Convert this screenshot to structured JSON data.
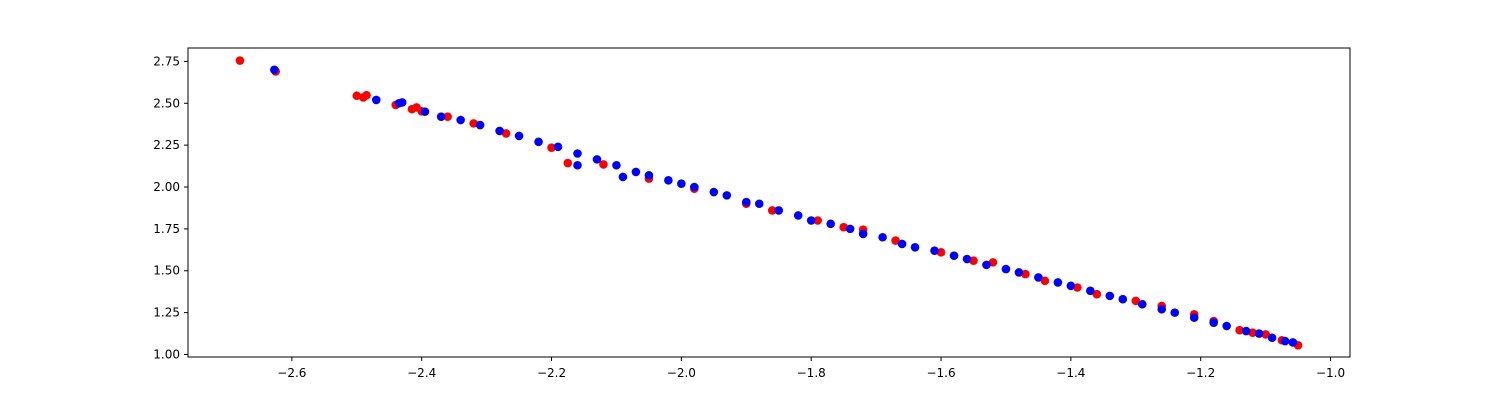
{
  "chart_data": {
    "type": "scatter",
    "title": "",
    "xlabel": "",
    "ylabel": "",
    "xlim": [
      -2.76,
      -0.97
    ],
    "ylim": [
      0.985,
      2.83
    ],
    "xticks": [
      -2.6,
      -2.4,
      -2.2,
      -2.0,
      -1.8,
      -1.6,
      -1.4,
      -1.2,
      -1.0
    ],
    "xtick_labels": [
      "−2.6",
      "−2.4",
      "−2.2",
      "−2.0",
      "−1.8",
      "−1.6",
      "−1.4",
      "−1.2",
      "−1.0"
    ],
    "yticks": [
      1.0,
      1.25,
      1.5,
      1.75,
      2.0,
      2.25,
      2.5,
      2.75
    ],
    "ytick_labels": [
      "1.00",
      "1.25",
      "1.50",
      "1.75",
      "2.00",
      "2.25",
      "2.50",
      "2.75"
    ],
    "grid": false,
    "legend": "none",
    "series": [
      {
        "color": "#ff0000",
        "points": [
          [
            -2.68,
            2.755
          ],
          [
            -2.625,
            2.69
          ],
          [
            -2.5,
            2.545
          ],
          [
            -2.49,
            2.535
          ],
          [
            -2.485,
            2.548
          ],
          [
            -2.44,
            2.49
          ],
          [
            -2.415,
            2.465
          ],
          [
            -2.408,
            2.475
          ],
          [
            -2.4,
            2.452
          ],
          [
            -2.175,
            2.143
          ],
          [
            -2.36,
            2.42
          ],
          [
            -2.32,
            2.38
          ],
          [
            -2.27,
            2.32
          ],
          [
            -2.2,
            2.235
          ],
          [
            -2.12,
            2.135
          ],
          [
            -2.05,
            2.05
          ],
          [
            -1.98,
            1.99
          ],
          [
            -1.9,
            1.9
          ],
          [
            -1.86,
            1.86
          ],
          [
            -1.79,
            1.8
          ],
          [
            -1.75,
            1.76
          ],
          [
            -1.72,
            1.745
          ],
          [
            -1.67,
            1.68
          ],
          [
            -1.6,
            1.61
          ],
          [
            -1.55,
            1.56
          ],
          [
            -1.52,
            1.55
          ],
          [
            -1.47,
            1.48
          ],
          [
            -1.44,
            1.44
          ],
          [
            -1.39,
            1.4
          ],
          [
            -1.36,
            1.36
          ],
          [
            -1.3,
            1.32
          ],
          [
            -1.26,
            1.29
          ],
          [
            -1.21,
            1.24
          ],
          [
            -1.18,
            1.2
          ],
          [
            -1.14,
            1.145
          ],
          [
            -1.12,
            1.13
          ],
          [
            -1.1,
            1.12
          ],
          [
            -1.075,
            1.085
          ],
          [
            -1.05,
            1.055
          ]
        ]
      },
      {
        "color": "#0000ff",
        "points": [
          [
            -2.627,
            2.7
          ],
          [
            -2.47,
            2.52
          ],
          [
            -2.435,
            2.5
          ],
          [
            -2.43,
            2.505
          ],
          [
            -2.395,
            2.45
          ],
          [
            -2.16,
            2.13
          ],
          [
            -2.09,
            2.06
          ],
          [
            -2.37,
            2.42
          ],
          [
            -2.34,
            2.4
          ],
          [
            -2.31,
            2.37
          ],
          [
            -2.28,
            2.335
          ],
          [
            -2.25,
            2.305
          ],
          [
            -2.22,
            2.27
          ],
          [
            -2.19,
            2.24
          ],
          [
            -2.16,
            2.2
          ],
          [
            -2.13,
            2.165
          ],
          [
            -2.1,
            2.13
          ],
          [
            -2.07,
            2.09
          ],
          [
            -2.05,
            2.07
          ],
          [
            -2.02,
            2.04
          ],
          [
            -2.0,
            2.02
          ],
          [
            -1.98,
            2.0
          ],
          [
            -1.95,
            1.97
          ],
          [
            -1.93,
            1.95
          ],
          [
            -1.9,
            1.91
          ],
          [
            -1.88,
            1.9
          ],
          [
            -1.85,
            1.86
          ],
          [
            -1.82,
            1.83
          ],
          [
            -1.8,
            1.8
          ],
          [
            -1.77,
            1.78
          ],
          [
            -1.74,
            1.75
          ],
          [
            -1.72,
            1.72
          ],
          [
            -1.69,
            1.7
          ],
          [
            -1.66,
            1.66
          ],
          [
            -1.64,
            1.64
          ],
          [
            -1.61,
            1.62
          ],
          [
            -1.58,
            1.59
          ],
          [
            -1.56,
            1.57
          ],
          [
            -1.53,
            1.535
          ],
          [
            -1.5,
            1.51
          ],
          [
            -1.48,
            1.49
          ],
          [
            -1.45,
            1.46
          ],
          [
            -1.42,
            1.43
          ],
          [
            -1.4,
            1.41
          ],
          [
            -1.37,
            1.38
          ],
          [
            -1.34,
            1.35
          ],
          [
            -1.32,
            1.33
          ],
          [
            -1.29,
            1.3
          ],
          [
            -1.26,
            1.27
          ],
          [
            -1.24,
            1.25
          ],
          [
            -1.21,
            1.22
          ],
          [
            -1.18,
            1.19
          ],
          [
            -1.16,
            1.17
          ],
          [
            -1.13,
            1.14
          ],
          [
            -1.11,
            1.125
          ],
          [
            -1.09,
            1.1
          ],
          [
            -1.07,
            1.08
          ],
          [
            -1.058,
            1.072
          ]
        ]
      }
    ]
  }
}
